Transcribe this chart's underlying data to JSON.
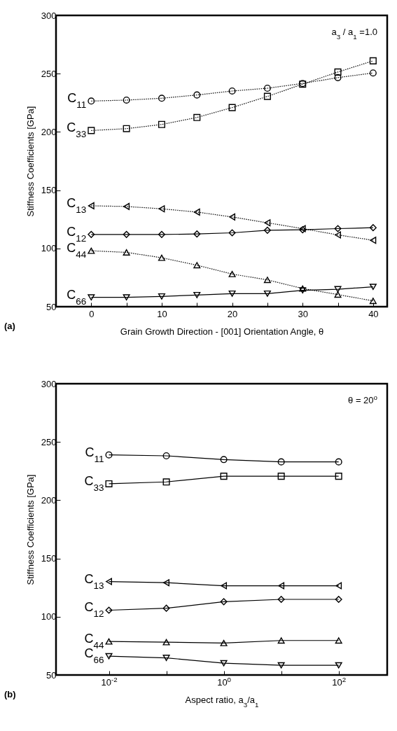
{
  "chart_data": [
    {
      "type": "line",
      "xlabel": "Grain Growth Direction - [001]  Orientation Angle, θ",
      "ylabel": "Stiffness Coefficients [GPa]",
      "x": [
        0,
        5,
        10,
        15,
        20,
        25,
        30,
        35,
        40
      ],
      "xlim": [
        -5,
        42
      ],
      "xticks": [
        0,
        {
          "value": 5,
          "label": null
        },
        10,
        {
          "value": 15,
          "label": null
        },
        20,
        {
          "value": 25,
          "label": null
        },
        30,
        {
          "value": 35,
          "label": null
        },
        40
      ],
      "ylim": [
        50,
        300
      ],
      "yticks": [
        50,
        100,
        150,
        200,
        250,
        300
      ],
      "grid": false,
      "series": [
        {
          "name": "C$_{11}$",
          "color": "#000000",
          "marker": "circle",
          "line_style": "dotted",
          "values": [
            226.5,
            227.3,
            228.9,
            231.7,
            235.1,
            237.5,
            241.6,
            246.6,
            250.6
          ]
        },
        {
          "name": "C$_{33}$",
          "color": "#000000",
          "marker": "square",
          "line_style": "dotted",
          "values": [
            201.2,
            202.8,
            206.4,
            212.4,
            220.9,
            230.5,
            241,
            251.4,
            261
          ]
        },
        {
          "name": "C$_{13}$",
          "color": "#000000",
          "marker": "triangle-left",
          "line_style": "dotted",
          "values": [
            136.6,
            136,
            134,
            131.2,
            127,
            122,
            117,
            111.6,
            107
          ]
        },
        {
          "name": "C$_{12}$",
          "color": "#000000",
          "marker": "diamond",
          "line_style": "solid",
          "values": [
            112,
            112,
            112,
            112.4,
            113.4,
            115.6,
            116,
            117,
            117.8
          ]
        },
        {
          "name": "C$_{44}$",
          "color": "#000000",
          "marker": "triangle-up",
          "line_style": "dotted",
          "values": [
            98,
            96.6,
            92,
            85.6,
            78,
            73,
            65.6,
            60.4,
            55
          ]
        },
        {
          "name": "C$_{66}$",
          "color": "#000000",
          "marker": "triangle-down",
          "line_style": "solid",
          "values": [
            58,
            58,
            58.8,
            60,
            61.2,
            61.2,
            64,
            65,
            67
          ]
        }
      ],
      "annotations": [
        "a$_{3}$ / a$_{1}$ =1.0",
        "(a)"
      ]
    },
    {
      "type": "line",
      "xlabel": "Aspect ratio, a$_{3}$/a$_{1}$",
      "ylabel": "Stiffness Coefficients [GPa]",
      "log": "x",
      "x": [
        0.01,
        0.1,
        1,
        10,
        100
      ],
      "xlim": [
        0.0012,
        700
      ],
      "xticks": [
        {
          "value": 0.01,
          "label": "10$^{-2}$"
        },
        {
          "value": 0.1,
          "label": null
        },
        {
          "value": 1,
          "label": "10$^{0}$"
        },
        {
          "value": 10,
          "label": null
        },
        {
          "value": 100,
          "label": "10$^{2}$"
        }
      ],
      "ylim": [
        50,
        300
      ],
      "yticks": [
        50,
        100,
        150,
        200,
        250,
        300
      ],
      "grid": false,
      "series": [
        {
          "name": "C$_{11}$",
          "color": "#000000",
          "marker": "circle",
          "line_style": "solid",
          "values": [
            238.9,
            238.1,
            234.9,
            232.9,
            232.9
          ]
        },
        {
          "name": "C$_{33}$",
          "color": "#000000",
          "marker": "square",
          "line_style": "solid",
          "values": [
            214.1,
            215.7,
            220.6,
            220.6,
            220.6
          ]
        },
        {
          "name": "C$_{13}$",
          "color": "#000000",
          "marker": "triangle-left",
          "line_style": "solid",
          "values": [
            130.2,
            129.2,
            126.6,
            126.6,
            126.6
          ]
        },
        {
          "name": "C$_{12}$",
          "color": "#000000",
          "marker": "diamond",
          "line_style": "solid",
          "values": [
            105.6,
            107.3,
            112.9,
            114.9,
            114.9
          ]
        },
        {
          "name": "C$_{44}$",
          "color": "#000000",
          "marker": "triangle-up",
          "line_style": "solid",
          "values": [
            78.8,
            78.2,
            77.4,
            79.6,
            79.6
          ]
        },
        {
          "name": "C$_{66}$",
          "color": "#000000",
          "marker": "triangle-down",
          "line_style": "solid",
          "values": [
            66.1,
            64.7,
            60.1,
            58.3,
            58.3
          ]
        }
      ],
      "annotations": [
        "θ = 20$^{o}$",
        "(b)"
      ]
    }
  ]
}
